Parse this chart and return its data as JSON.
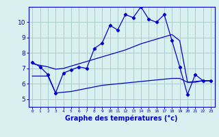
{
  "x": [
    0,
    1,
    2,
    3,
    4,
    5,
    6,
    7,
    8,
    9,
    10,
    11,
    12,
    13,
    14,
    15,
    16,
    17,
    18,
    19,
    20,
    21,
    22,
    23
  ],
  "temp_actual": [
    7.4,
    7.1,
    6.6,
    5.4,
    6.7,
    6.9,
    7.1,
    7.0,
    8.3,
    8.65,
    9.8,
    9.5,
    10.5,
    10.3,
    11.0,
    10.2,
    10.0,
    10.5,
    8.8,
    7.1,
    5.3,
    6.6,
    6.2,
    6.2
  ],
  "trend_high": [
    7.3,
    7.2,
    7.1,
    6.95,
    7.0,
    7.15,
    7.3,
    7.45,
    7.6,
    7.75,
    7.9,
    8.05,
    8.2,
    8.4,
    8.6,
    8.75,
    8.9,
    9.05,
    9.2,
    8.8,
    6.1,
    6.15,
    6.2,
    6.2
  ],
  "trend_low": [
    6.5,
    6.5,
    6.5,
    5.4,
    5.45,
    5.5,
    5.6,
    5.7,
    5.8,
    5.9,
    5.95,
    6.0,
    6.05,
    6.1,
    6.15,
    6.2,
    6.25,
    6.3,
    6.35,
    6.35,
    6.1,
    6.1,
    6.2,
    6.2
  ],
  "line_color": "#0000cc",
  "bg_color": "#d8f0f0",
  "grid_color": "#aacccc",
  "xlabel": "Graphe des températures (°c)",
  "ylim": [
    4.5,
    11.0
  ],
  "yticks": [
    5,
    6,
    7,
    8,
    9,
    10
  ],
  "xlim": [
    -0.5,
    23.5
  ]
}
